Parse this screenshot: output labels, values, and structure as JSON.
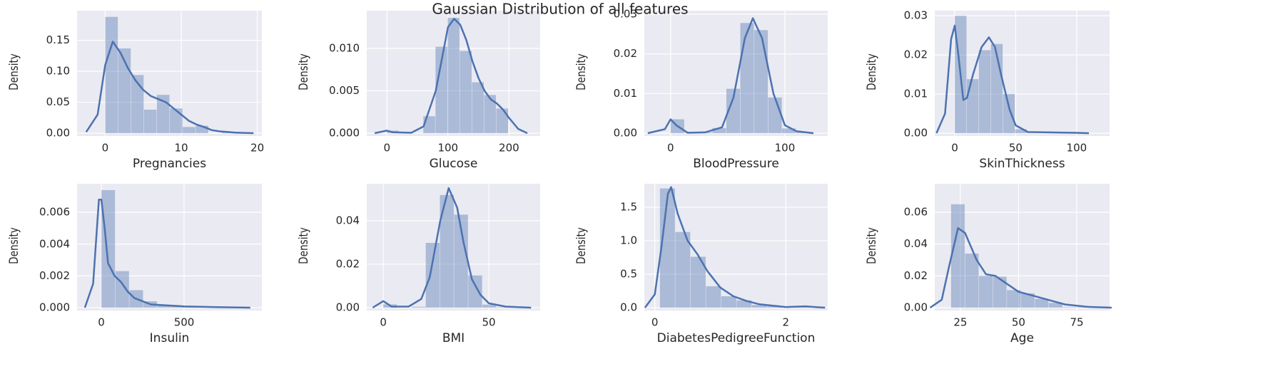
{
  "title": "Gaussian Distribution of all features",
  "chart_data": [
    {
      "type": "histogram",
      "xlabel": "Pregnancies",
      "ylabel": "Density",
      "color": "#4c72b0",
      "grid": true,
      "bins": [
        0,
        1.7,
        3.4,
        5.1,
        6.8,
        8.5,
        10.2,
        11.9,
        13.6,
        15.3,
        17
      ],
      "values": [
        0.188,
        0.137,
        0.094,
        0.038,
        0.062,
        0.04,
        0.01,
        0.012,
        0,
        0.001
      ],
      "kde": {
        "x": [
          -2.5,
          -1,
          0,
          1,
          2,
          3,
          4,
          5,
          6,
          7,
          8,
          9,
          10,
          11,
          12,
          13,
          14,
          15,
          17,
          19.5
        ],
        "y": [
          0.002,
          0.03,
          0.11,
          0.148,
          0.13,
          0.105,
          0.085,
          0.07,
          0.06,
          0.055,
          0.05,
          0.04,
          0.03,
          0.02,
          0.014,
          0.01,
          0.005,
          0.003,
          0.001,
          0
        ]
      },
      "xlim": [
        -3.7,
        20.6
      ],
      "ylim": [
        0,
        0.198
      ],
      "xticks": [
        0,
        10,
        20
      ],
      "yticks": [
        {
          "value": 0,
          "label": "0.00"
        },
        0.05,
        {
          "value": 0.1,
          "label": "0.10"
        },
        0.15
      ]
    },
    {
      "type": "histogram",
      "xlabel": "Glucose",
      "ylabel": "Density",
      "color": "#4c72b0",
      "grid": true,
      "bins": [
        0,
        19.9,
        39.8,
        59.7,
        79.6,
        99.5,
        119.4,
        139.3,
        159.2,
        179.1,
        199
      ],
      "values": [
        0.0003,
        0,
        0,
        0.002,
        0.0102,
        0.0136,
        0.0097,
        0.006,
        0.0045,
        0.0029
      ],
      "kde": {
        "x": [
          -20,
          0,
          10,
          40,
          60,
          80,
          100,
          110,
          120,
          130,
          140,
          150,
          160,
          170,
          180,
          190,
          200,
          215,
          230
        ],
        "y": [
          0,
          0.0003,
          0.0001,
          5e-05,
          0.0008,
          0.005,
          0.0125,
          0.0135,
          0.0128,
          0.011,
          0.0085,
          0.0065,
          0.005,
          0.004,
          0.0035,
          0.0028,
          0.0018,
          0.0005,
          0
        ]
      },
      "xlim": [
        -33,
        251
      ],
      "ylim": [
        0,
        0.01445
      ],
      "xticks": [
        0,
        100,
        200
      ],
      "yticks": [
        {
          "value": 0,
          "label": "0.000"
        },
        0.005,
        {
          "value": 0.01,
          "label": "0.010"
        }
      ]
    },
    {
      "type": "histogram",
      "xlabel": "BloodPressure",
      "ylabel": "Density",
      "color": "#4c72b0",
      "grid": true,
      "bins": [
        0,
        12.2,
        24.4,
        36.6,
        48.8,
        61,
        73.2,
        85.4,
        97.6,
        109.8,
        122
      ],
      "values": [
        0.0035,
        0.0001,
        0.0002,
        0.0013,
        0.0112,
        0.0278,
        0.026,
        0.009,
        0.0012,
        0.0003
      ],
      "kde": {
        "x": [
          -20,
          -5,
          0,
          5,
          15,
          30,
          45,
          55,
          65,
          72,
          80,
          90,
          100,
          110,
          125
        ],
        "y": [
          0,
          0.001,
          0.0035,
          0.002,
          0.0001,
          0.0002,
          0.0015,
          0.009,
          0.024,
          0.029,
          0.024,
          0.01,
          0.002,
          0.0005,
          0
        ]
      },
      "xlim": [
        -23,
        137.5
      ],
      "ylim": [
        0,
        0.0309
      ],
      "xticks": [
        0,
        100
      ],
      "yticks": [
        {
          "value": 0,
          "label": "0.00"
        },
        0.01,
        0.02,
        0.03
      ]
    },
    {
      "type": "histogram",
      "xlabel": "SkinThickness",
      "ylabel": "Density",
      "color": "#4c72b0",
      "grid": true,
      "bins": [
        0,
        9.9,
        19.8,
        29.7,
        39.6,
        49.5,
        59.4,
        69.3,
        79.2,
        89.1,
        99
      ],
      "values": [
        0.03,
        0.0138,
        0.0212,
        0.0228,
        0.01,
        0.001,
        5e-05,
        0,
        0,
        0.0001
      ],
      "kde": {
        "x": [
          -15,
          -8,
          -3,
          0,
          3,
          7,
          10,
          15,
          22,
          28,
          33,
          38,
          45,
          50,
          60,
          100,
          110
        ],
        "y": [
          0,
          0.005,
          0.024,
          0.0275,
          0.02,
          0.0085,
          0.009,
          0.015,
          0.022,
          0.0245,
          0.022,
          0.015,
          0.006,
          0.002,
          0.0003,
          0.0001,
          0
        ]
      },
      "xlim": [
        -16.4,
        127
      ],
      "ylim": [
        0,
        0.0313
      ],
      "xticks": [
        0,
        50,
        100
      ],
      "yticks": [
        {
          "value": 0,
          "label": "0.00"
        },
        0.01,
        0.02,
        0.03
      ]
    },
    {
      "type": "histogram",
      "xlabel": "Insulin",
      "ylabel": "Density",
      "color": "#4c72b0",
      "grid": true,
      "bins": [
        0,
        84.6,
        169.2,
        253.8,
        338.4,
        423,
        507.6,
        592.2,
        676.8,
        761.4,
        846
      ],
      "values": [
        0.0074,
        0.0023,
        0.0011,
        0.0004,
        0.00015,
        0.0001,
        3e-05,
        2e-05,
        0,
        1e-05
      ],
      "kde": {
        "x": [
          -100,
          -50,
          -15,
          0,
          20,
          40,
          80,
          120,
          160,
          200,
          300,
          500,
          700,
          900
        ],
        "y": [
          0,
          0.0015,
          0.0068,
          0.0068,
          0.005,
          0.0028,
          0.002,
          0.0016,
          0.001,
          0.0006,
          0.0002,
          8e-05,
          3e-05,
          0
        ]
      },
      "xlim": [
        -147,
        970
      ],
      "ylim": [
        0,
        0.0078
      ],
      "xticks": [
        0,
        500
      ],
      "yticks": [
        {
          "value": 0,
          "label": "0.000"
        },
        0.002,
        0.004,
        0.006
      ]
    },
    {
      "type": "histogram",
      "xlabel": "BMI",
      "ylabel": "Density",
      "color": "#4c72b0",
      "grid": true,
      "bins": [
        0,
        6.71,
        13.42,
        20.13,
        26.84,
        33.55,
        40.26,
        46.97,
        53.68,
        60.39,
        67.1
      ],
      "values": [
        0.0015,
        0,
        0.0004,
        0.0298,
        0.0518,
        0.0428,
        0.0148,
        0.0014,
        0.0002,
        0.0002
      ],
      "kde": {
        "x": [
          -5,
          0,
          4,
          12,
          18,
          22,
          27,
          31,
          35,
          38,
          42,
          46,
          50,
          58,
          70
        ],
        "y": [
          0,
          0.003,
          0.0005,
          0.0005,
          0.004,
          0.014,
          0.04,
          0.055,
          0.046,
          0.03,
          0.013,
          0.006,
          0.002,
          0.0005,
          0
        ]
      },
      "xlim": [
        -7.8,
        74.3
      ],
      "ylim": [
        0,
        0.057
      ],
      "xticks": [
        0,
        50
      ],
      "yticks": [
        {
          "value": 0,
          "label": "0.00"
        },
        0.02,
        0.04
      ]
    },
    {
      "type": "histogram",
      "xlabel": "DiabetesPedigreeFunction",
      "ylabel": "Density",
      "color": "#4c72b0",
      "grid": true,
      "bins": [
        0.078,
        0.312,
        0.546,
        0.781,
        1.015,
        1.249,
        1.483,
        1.718,
        1.952,
        2.186,
        2.42
      ],
      "values": [
        1.78,
        1.13,
        0.76,
        0.32,
        0.17,
        0.11,
        0.04,
        0.02,
        0.01,
        0.02
      ],
      "kde": {
        "x": [
          -0.15,
          0,
          0.1,
          0.2,
          0.25,
          0.35,
          0.5,
          0.65,
          0.8,
          1.0,
          1.2,
          1.4,
          1.6,
          2.0,
          2.3,
          2.5,
          2.6
        ],
        "y": [
          0,
          0.2,
          0.9,
          1.7,
          1.8,
          1.4,
          1.0,
          0.8,
          0.55,
          0.3,
          0.17,
          0.1,
          0.05,
          0.01,
          0.02,
          0.005,
          0
        ]
      },
      "xlim": [
        -0.16,
        2.64
      ],
      "ylim": [
        0,
        1.85
      ],
      "xticks": [
        0,
        2
      ],
      "yticks": [
        {
          "value": 0,
          "label": "0.0"
        },
        0.5,
        {
          "value": 1,
          "label": "1.0"
        },
        1.5
      ]
    },
    {
      "type": "histogram",
      "xlabel": "Age",
      "ylabel": "Density",
      "color": "#4c72b0",
      "grid": true,
      "bins": [
        21,
        27,
        33,
        39,
        45,
        51,
        57,
        63,
        69,
        75,
        81
      ],
      "values": [
        0.065,
        0.034,
        0.02,
        0.0195,
        0.011,
        0.009,
        0.0055,
        0.003,
        0.0003,
        0.0003
      ],
      "kde": {
        "x": [
          12,
          17,
          20,
          24,
          27,
          32,
          36,
          40,
          44,
          50,
          55,
          60,
          65,
          70,
          80,
          90
        ],
        "y": [
          0,
          0.005,
          0.025,
          0.05,
          0.047,
          0.03,
          0.021,
          0.02,
          0.016,
          0.01,
          0.008,
          0.006,
          0.004,
          0.002,
          0.0005,
          0
        ]
      },
      "xlim": [
        14,
        89.1
      ],
      "ylim": [
        0,
        0.0779
      ],
      "xticks": [
        25,
        50,
        75
      ],
      "yticks": [
        {
          "value": 0,
          "label": "0.00"
        },
        0.02,
        0.04,
        0.06
      ]
    }
  ]
}
